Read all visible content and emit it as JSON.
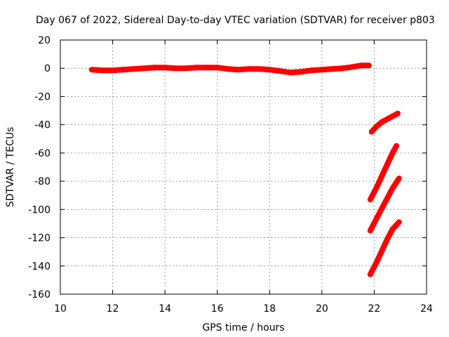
{
  "chart_data": {
    "type": "scatter",
    "title": "Day 067 of 2022, Sidereal Day-to-day VTEC variation (SDTVAR) for receiver p803",
    "xlabel": "GPS time / hours",
    "ylabel": "SDTVAR / TECUs",
    "xlim": [
      10,
      24
    ],
    "ylim": [
      -160,
      20
    ],
    "xticks": [
      10,
      12,
      14,
      16,
      18,
      20,
      22,
      24
    ],
    "yticks": [
      -160,
      -140,
      -120,
      -100,
      -80,
      -60,
      -40,
      -20,
      0,
      20
    ],
    "grid": true,
    "legend": "none",
    "series_color": "#ff0000",
    "series": [
      {
        "name": "main",
        "x": [
          11.2,
          11.6,
          12.0,
          12.4,
          12.8,
          13.2,
          13.6,
          14.0,
          14.4,
          14.8,
          15.2,
          15.6,
          16.0,
          16.4,
          16.8,
          17.2,
          17.6,
          18.0,
          18.4,
          18.8,
          19.2,
          19.6,
          20.0,
          20.4,
          20.8,
          21.2,
          21.5,
          21.8
        ],
        "y": [
          -1,
          -1.5,
          -1.5,
          -1,
          -0.5,
          0,
          0.5,
          0.5,
          0,
          0,
          0.5,
          0.5,
          0.5,
          -0.5,
          -1,
          -0.5,
          -0.5,
          -1,
          -2,
          -3,
          -2.5,
          -1.5,
          -1,
          -0.5,
          0,
          1,
          2,
          2
        ]
      },
      {
        "name": "arc-1",
        "x": [
          21.9,
          22.1,
          22.3,
          22.5,
          22.7,
          22.9
        ],
        "y": [
          -45,
          -41,
          -38,
          -36,
          -34,
          -32
        ]
      },
      {
        "name": "arc-2",
        "x": [
          21.85,
          22.1,
          22.3,
          22.5,
          22.7,
          22.85
        ],
        "y": [
          -93,
          -84,
          -76,
          -68,
          -60,
          -55
        ]
      },
      {
        "name": "arc-3",
        "x": [
          21.85,
          22.1,
          22.3,
          22.5,
          22.7,
          22.95
        ],
        "y": [
          -115,
          -106,
          -99,
          -92,
          -85,
          -78
        ]
      },
      {
        "name": "arc-4",
        "x": [
          21.85,
          22.1,
          22.3,
          22.5,
          22.7,
          22.95
        ],
        "y": [
          -146,
          -137,
          -129,
          -121,
          -114,
          -109
        ]
      }
    ]
  }
}
